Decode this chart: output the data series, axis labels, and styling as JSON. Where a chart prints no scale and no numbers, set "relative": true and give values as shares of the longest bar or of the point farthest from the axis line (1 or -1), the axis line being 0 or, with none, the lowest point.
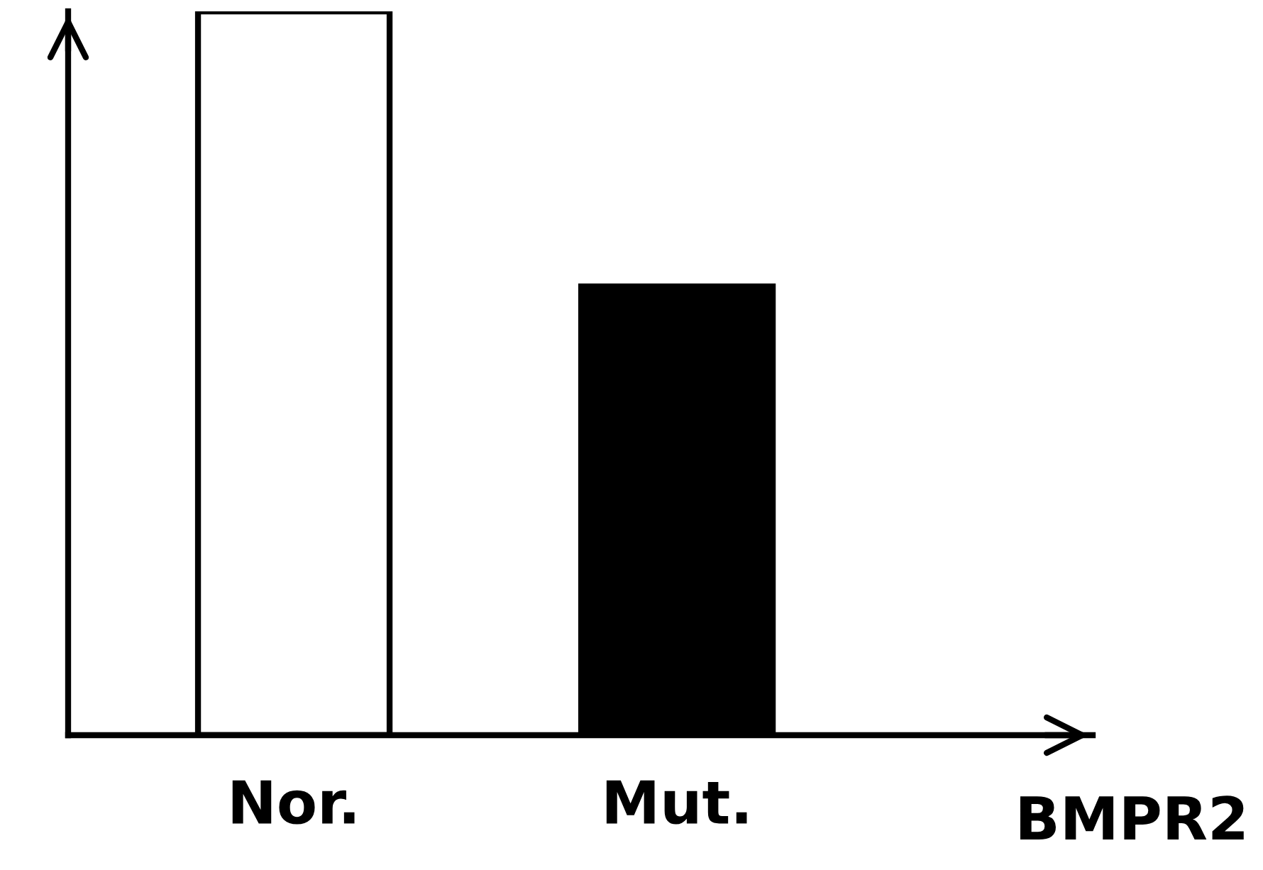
{
  "chart_data": {
    "type": "bar",
    "xlabel": "BMPR2",
    "categories": [
      "Nor.",
      "Mut."
    ],
    "values": [
      1,
      0.62
    ],
    "colors": [
      "#ffffff",
      "#000000"
    ],
    "relative": true,
    "grid": false,
    "legend": false
  }
}
